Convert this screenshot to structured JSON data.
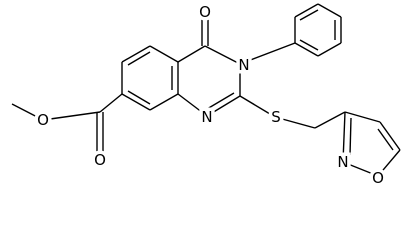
{
  "atoms": [
    "O",
    "N",
    "N",
    "S",
    "O",
    "O",
    "N",
    "O"
  ]
}
